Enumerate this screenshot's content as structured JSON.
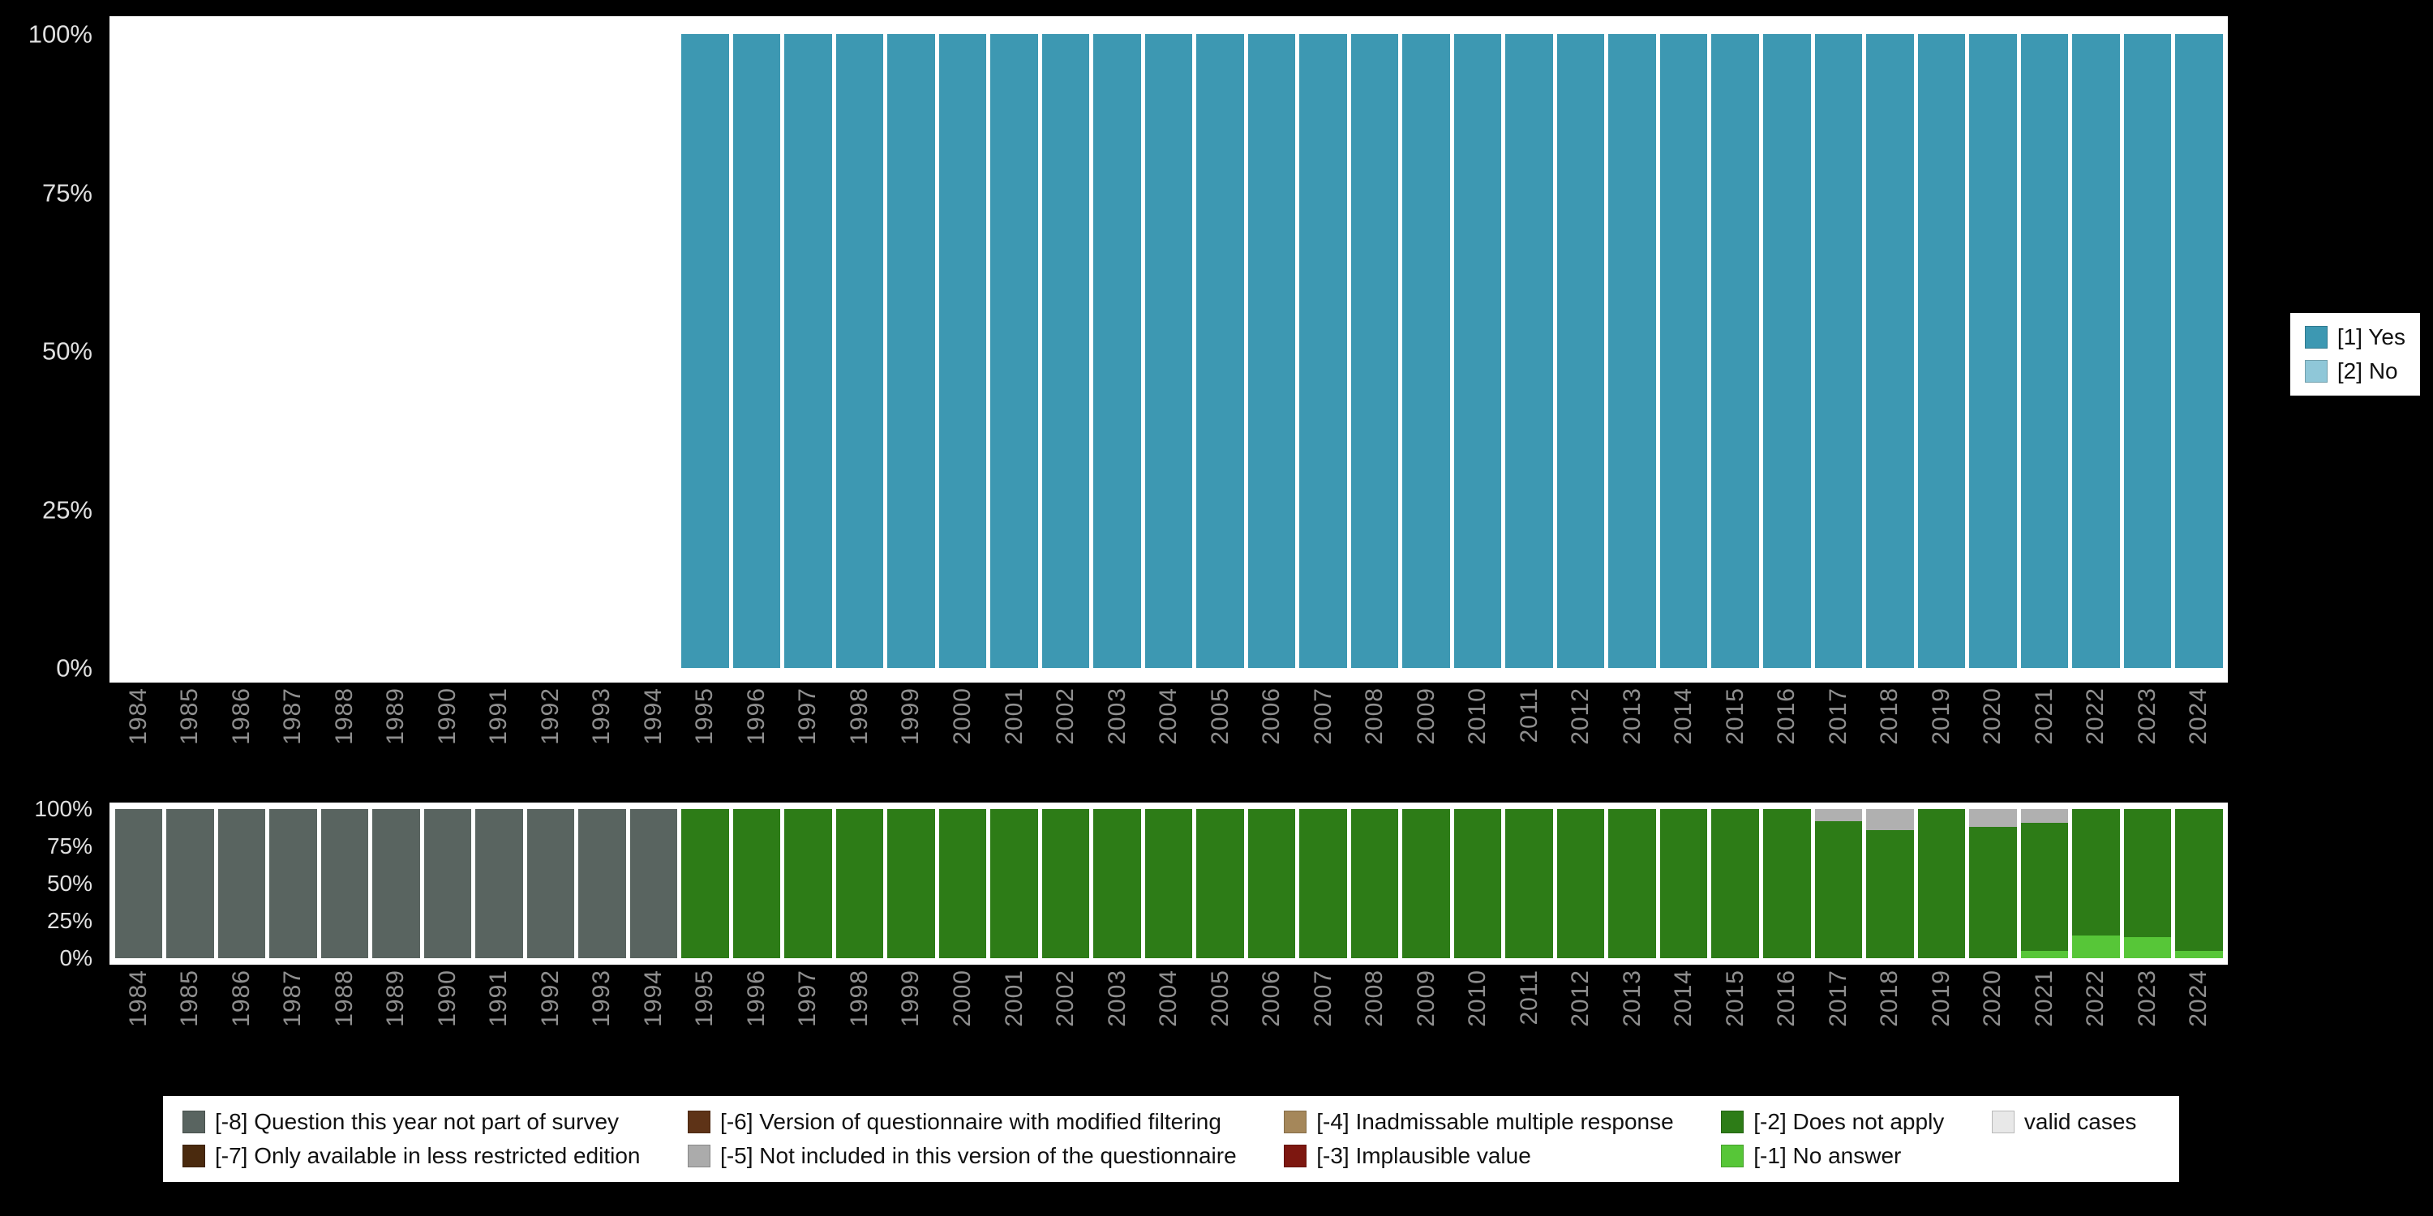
{
  "page": {
    "background": "#000000",
    "panel_background": "#ffffff",
    "x_tick_color": "#8f8f8f",
    "y_tick_color": "#e0e0e0"
  },
  "y_ticks": [
    "100%",
    "75%",
    "50%",
    "25%",
    "0%"
  ],
  "legend_responses": {
    "items": [
      {
        "label": "[1] Yes",
        "color": "#3d98b2"
      },
      {
        "label": "[2] No",
        "color": "#8fc7d8"
      }
    ]
  },
  "legend_missing": {
    "items": [
      {
        "label": "[-8] Question this year not part of survey",
        "color": "#596460"
      },
      {
        "label": "[-7] Only available in less restricted edition",
        "color": "#4a2a0e"
      },
      {
        "label": "[-6] Version of questionnaire with modified filtering",
        "color": "#5e3317"
      },
      {
        "label": "[-5] Not included in this version of the questionnaire",
        "color": "#ababab"
      },
      {
        "label": "[-4] Inadmissable multiple response",
        "color": "#a5875a"
      },
      {
        "label": "[-3] Implausible value",
        "color": "#7d1710"
      },
      {
        "label": "[-2] Does not apply",
        "color": "#2d7c17"
      },
      {
        "label": "[-1] No answer",
        "color": "#57c638"
      },
      {
        "label": "valid cases",
        "color": "#e8e8e8"
      }
    ]
  },
  "chart_data": [
    {
      "type": "bar",
      "stacked": true,
      "title": "Response distribution by survey year (percent)",
      "x": [
        "1984",
        "1985",
        "1986",
        "1987",
        "1988",
        "1989",
        "1990",
        "1991",
        "1992",
        "1993",
        "1994",
        "1995",
        "1996",
        "1997",
        "1998",
        "1999",
        "2000",
        "2001",
        "2002",
        "2003",
        "2004",
        "2005",
        "2006",
        "2007",
        "2008",
        "2009",
        "2010",
        "2011",
        "2012",
        "2013",
        "2014",
        "2015",
        "2016",
        "2017",
        "2018",
        "2019",
        "2020",
        "2021",
        "2022",
        "2023",
        "2024"
      ],
      "yticks": [
        "0%",
        "25%",
        "50%",
        "75%",
        "100%"
      ],
      "ylim": [
        0,
        100
      ],
      "grid": false,
      "legend_position": "right",
      "stack_order": "bottom_to_top",
      "series": [
        {
          "name": "[1] Yes",
          "color": "#3d98b2",
          "values": [
            0,
            0,
            0,
            0,
            0,
            0,
            0,
            0,
            0,
            0,
            0,
            100,
            100,
            100,
            100,
            100,
            100,
            100,
            100,
            100,
            100,
            100,
            100,
            100,
            100,
            100,
            100,
            100,
            100,
            100,
            100,
            100,
            100,
            100,
            100,
            100,
            100,
            100,
            100,
            100,
            100
          ]
        },
        {
          "name": "[2] No",
          "color": "#8fc7d8",
          "values": [
            0,
            0,
            0,
            0,
            0,
            0,
            0,
            0,
            0,
            0,
            0,
            0,
            0,
            0,
            0,
            0,
            0,
            0,
            0,
            0,
            0,
            0,
            0,
            0,
            0,
            0,
            0,
            0,
            0,
            0,
            0,
            0,
            0,
            0,
            0,
            0,
            0,
            0,
            0,
            0,
            0
          ]
        }
      ]
    },
    {
      "type": "bar",
      "stacked": true,
      "title": "Missing values / valid cases by survey year (percent)",
      "x": [
        "1984",
        "1985",
        "1986",
        "1987",
        "1988",
        "1989",
        "1990",
        "1991",
        "1992",
        "1993",
        "1994",
        "1995",
        "1996",
        "1997",
        "1998",
        "1999",
        "2000",
        "2001",
        "2002",
        "2003",
        "2004",
        "2005",
        "2006",
        "2007",
        "2008",
        "2009",
        "2010",
        "2011",
        "2012",
        "2013",
        "2014",
        "2015",
        "2016",
        "2017",
        "2018",
        "2019",
        "2020",
        "2021",
        "2022",
        "2023",
        "2024"
      ],
      "yticks": [
        "0%",
        "25%",
        "50%",
        "75%",
        "100%"
      ],
      "ylim": [
        0,
        100
      ],
      "grid": false,
      "legend_position": "bottom",
      "stack_order": "bottom_to_top",
      "series": [
        {
          "name": "[-1] No answer",
          "color": "#57c638",
          "values": [
            0,
            0,
            0,
            0,
            0,
            0,
            0,
            0,
            0,
            0,
            0,
            0,
            0,
            0,
            0,
            0,
            0,
            0,
            0,
            0,
            0,
            0,
            0,
            0,
            0,
            0,
            0,
            0,
            0,
            0,
            0,
            0,
            0,
            0,
            0,
            0,
            0,
            5,
            15,
            14,
            5
          ]
        },
        {
          "name": "[-2] Does not apply",
          "color": "#2d7c17",
          "values": [
            0,
            0,
            0,
            0,
            0,
            0,
            0,
            0,
            0,
            0,
            0,
            100,
            100,
            100,
            100,
            100,
            100,
            100,
            100,
            100,
            100,
            100,
            100,
            100,
            100,
            100,
            100,
            100,
            100,
            100,
            100,
            100,
            100,
            92,
            86,
            100,
            88,
            86,
            85,
            86,
            95
          ]
        },
        {
          "name": "[-5] Not included in this version of the questionnaire",
          "color": "#b0b0b0",
          "values": [
            0,
            0,
            0,
            0,
            0,
            0,
            0,
            0,
            0,
            0,
            0,
            0,
            0,
            0,
            0,
            0,
            0,
            0,
            0,
            0,
            0,
            0,
            0,
            0,
            0,
            0,
            0,
            0,
            0,
            0,
            0,
            0,
            0,
            8,
            14,
            0,
            12,
            9,
            0,
            0,
            0
          ]
        },
        {
          "name": "[-8] Question this year not part of survey",
          "color": "#596460",
          "values": [
            100,
            100,
            100,
            100,
            100,
            100,
            100,
            100,
            100,
            100,
            100,
            0,
            0,
            0,
            0,
            0,
            0,
            0,
            0,
            0,
            0,
            0,
            0,
            0,
            0,
            0,
            0,
            0,
            0,
            0,
            0,
            0,
            0,
            0,
            0,
            0,
            0,
            0,
            0,
            0,
            0
          ]
        }
      ]
    }
  ]
}
